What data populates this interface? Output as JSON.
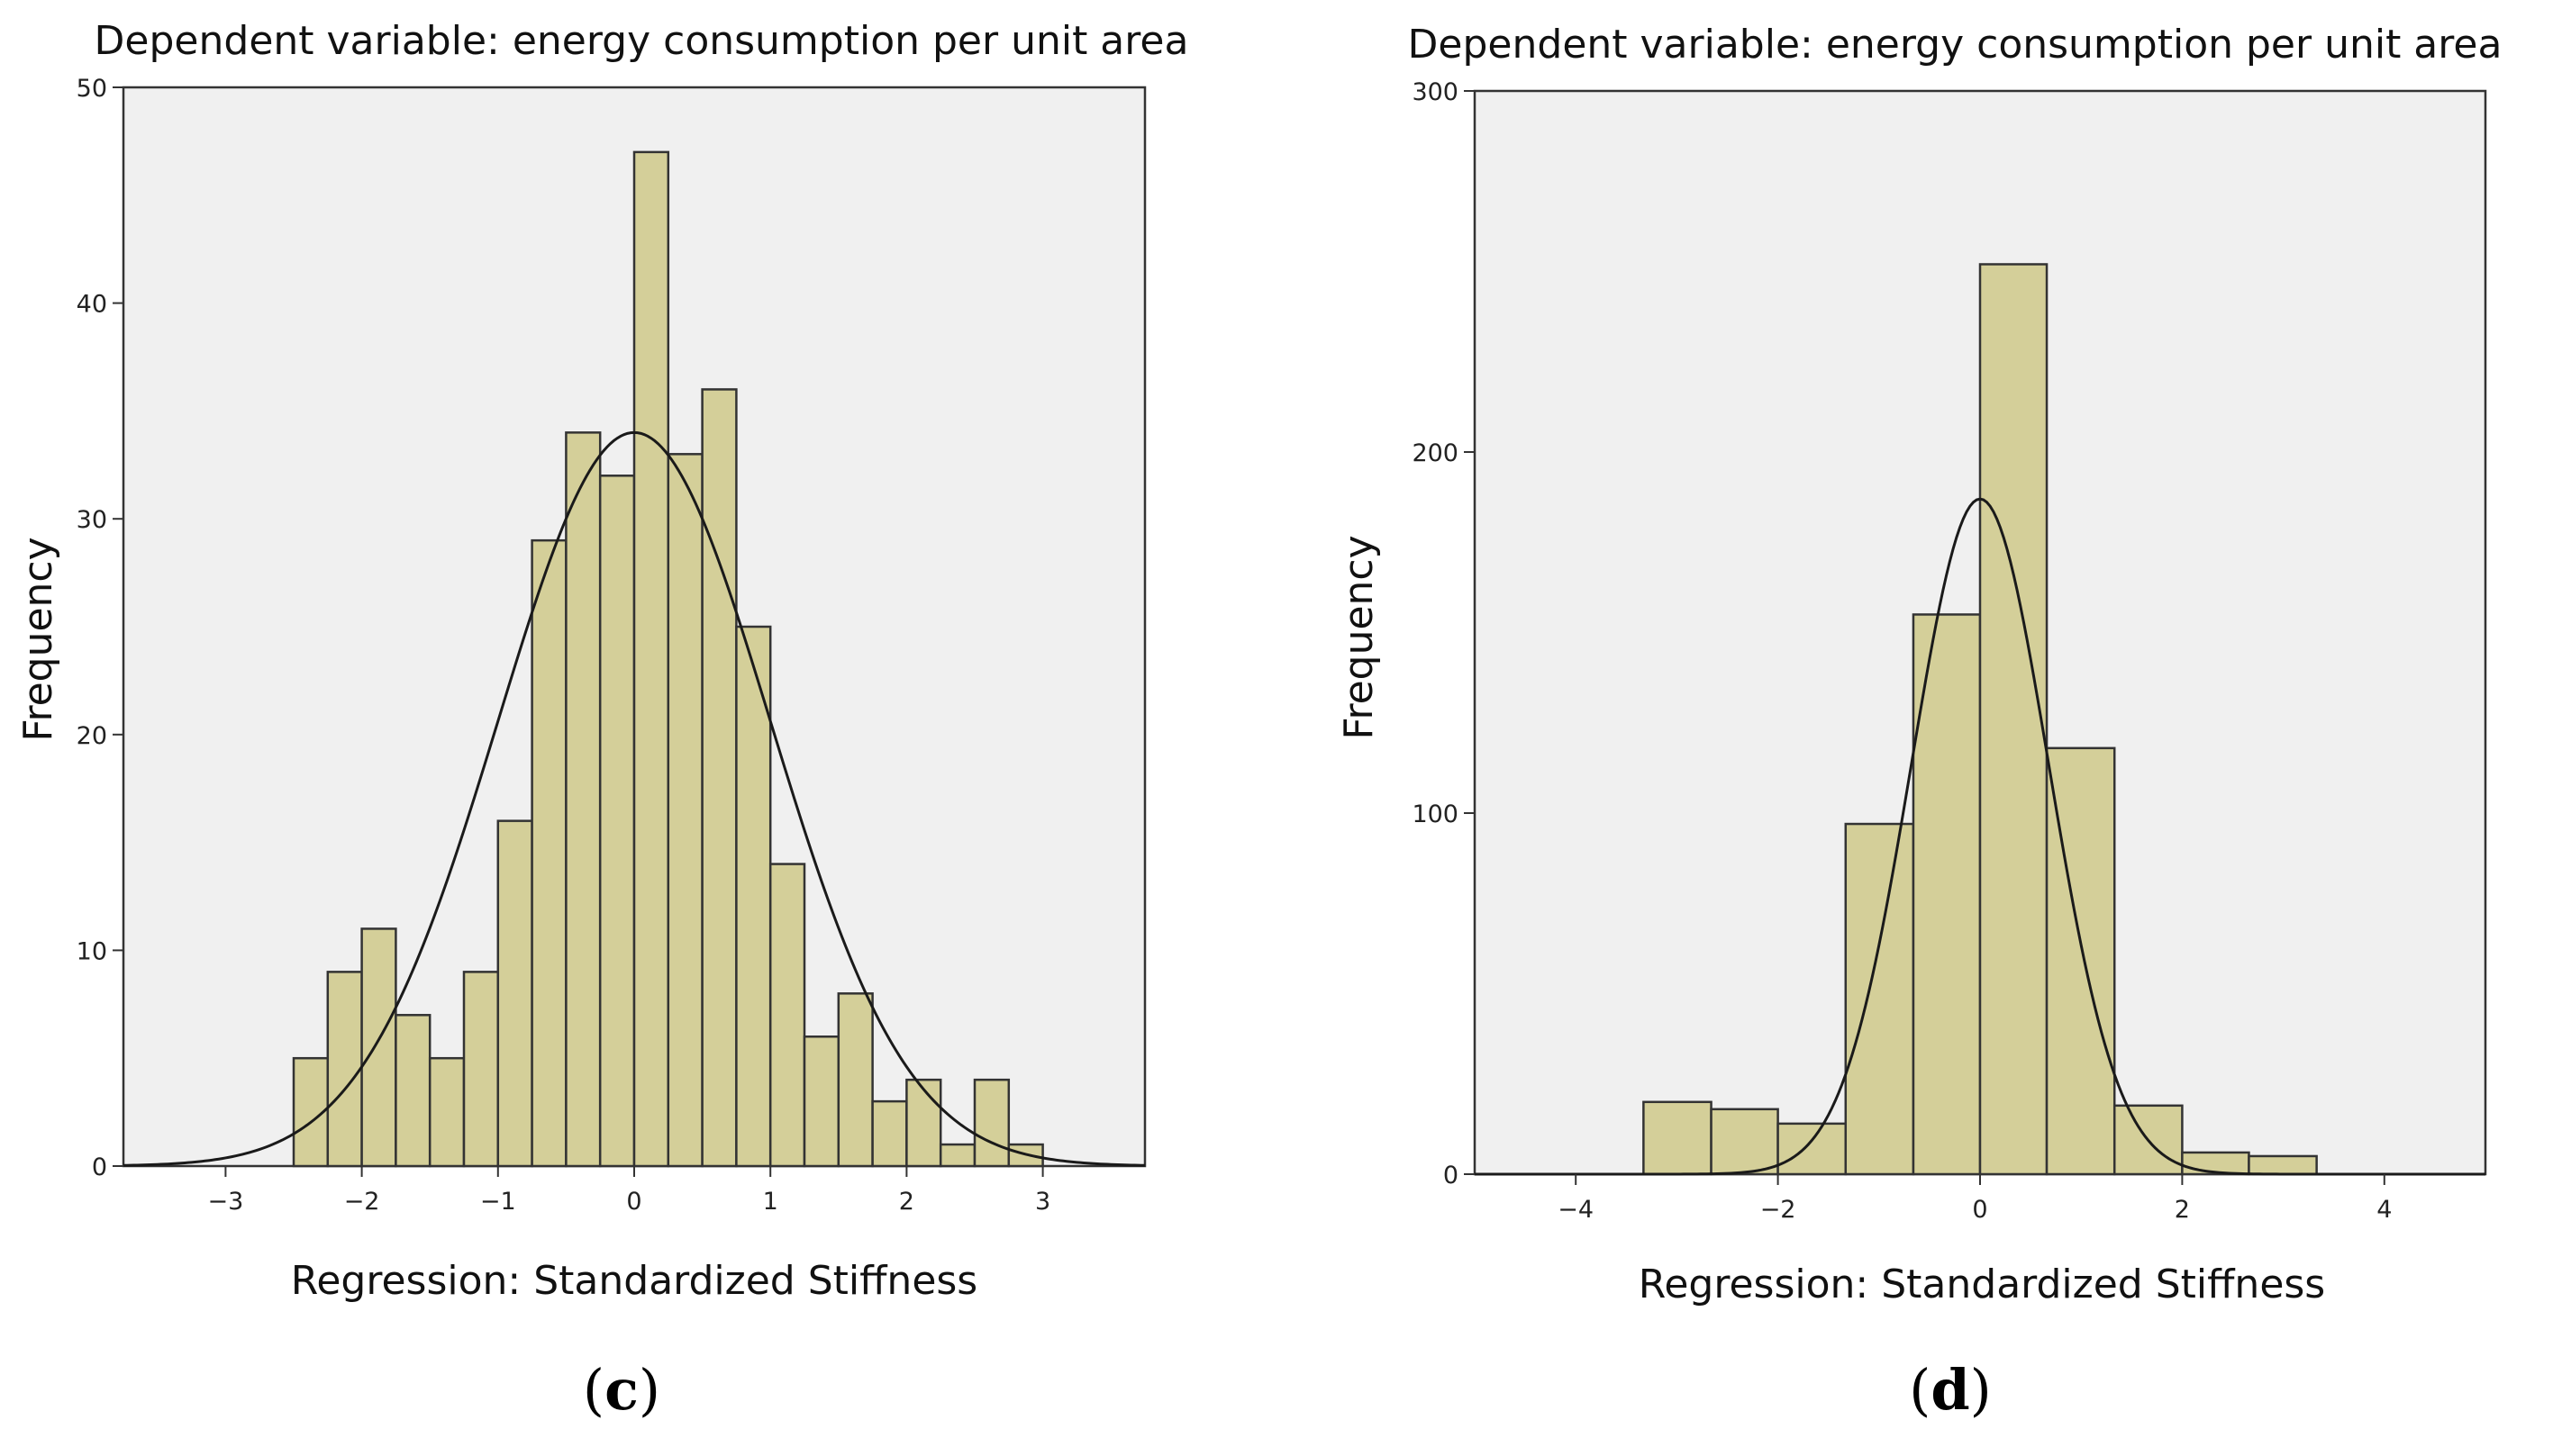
{
  "chart_data": [
    {
      "type": "bar",
      "id": "c",
      "panel_label": "c",
      "title": "Dependent variable: energy consumption per unit area",
      "xlabel": "Regression: Standardized Stiffness",
      "ylabel": "Frequency",
      "xlim": [
        -3.75,
        3.75
      ],
      "ylim": [
        0,
        50
      ],
      "xticks": [
        -3,
        -2,
        -1,
        0,
        1,
        2,
        3
      ],
      "yticks": [
        0,
        10,
        20,
        30,
        40,
        50
      ],
      "tick_labels_x": [
        "−3",
        "−2",
        "−1",
        "0",
        "1",
        "2",
        "3"
      ],
      "tick_labels_y": [
        "0",
        "10",
        "20",
        "30",
        "40",
        "50"
      ],
      "bin_edges": [
        -2.5,
        -2.25,
        -2.0,
        -1.75,
        -1.5,
        -1.25,
        -1.0,
        -0.75,
        -0.5,
        -0.25,
        0.0,
        0.25,
        0.5,
        0.75,
        1.0,
        1.25,
        1.5,
        1.75,
        2.0,
        2.25,
        2.5,
        2.75,
        3.0
      ],
      "values": [
        5,
        9,
        11,
        7,
        5,
        9,
        16,
        29,
        34,
        32,
        47,
        33,
        36,
        25,
        14,
        6,
        8,
        3,
        4,
        1,
        4,
        1
      ],
      "normal_curve": {
        "mean": 0,
        "sd": 1,
        "peak": 34
      },
      "grid": false,
      "legend": "none",
      "colors": {
        "bar": "#d4cf99",
        "plot_background": "#f0f0f0",
        "curve": "#1a1a1a"
      }
    },
    {
      "type": "bar",
      "id": "d",
      "panel_label": "d",
      "title": "Dependent variable: energy consumption per unit area",
      "xlabel": "Regression: Standardized Stiffness",
      "ylabel": "Frequency",
      "xlim": [
        -5,
        5
      ],
      "ylim": [
        0,
        300
      ],
      "xticks": [
        -4,
        -2,
        0,
        2,
        4
      ],
      "yticks": [
        0,
        100,
        200,
        300
      ],
      "tick_labels_x": [
        "−4",
        "−2",
        "0",
        "2",
        "4"
      ],
      "tick_labels_y": [
        "0",
        "100",
        "200",
        "300"
      ],
      "bin_edges": [
        -3.33,
        -2.66,
        -2.0,
        -1.33,
        -0.66,
        0.0,
        0.66,
        1.33,
        2.0,
        2.66,
        3.33
      ],
      "values": [
        20,
        18,
        14,
        97,
        155,
        252,
        118,
        19,
        6,
        5
      ],
      "normal_curve": {
        "mean": 0,
        "sd": 0.68,
        "peak": 187
      },
      "grid": false,
      "legend": "none",
      "colors": {
        "bar": "#d4cf99",
        "plot_background": "#f0f0f0",
        "curve": "#1a1a1a"
      }
    }
  ]
}
